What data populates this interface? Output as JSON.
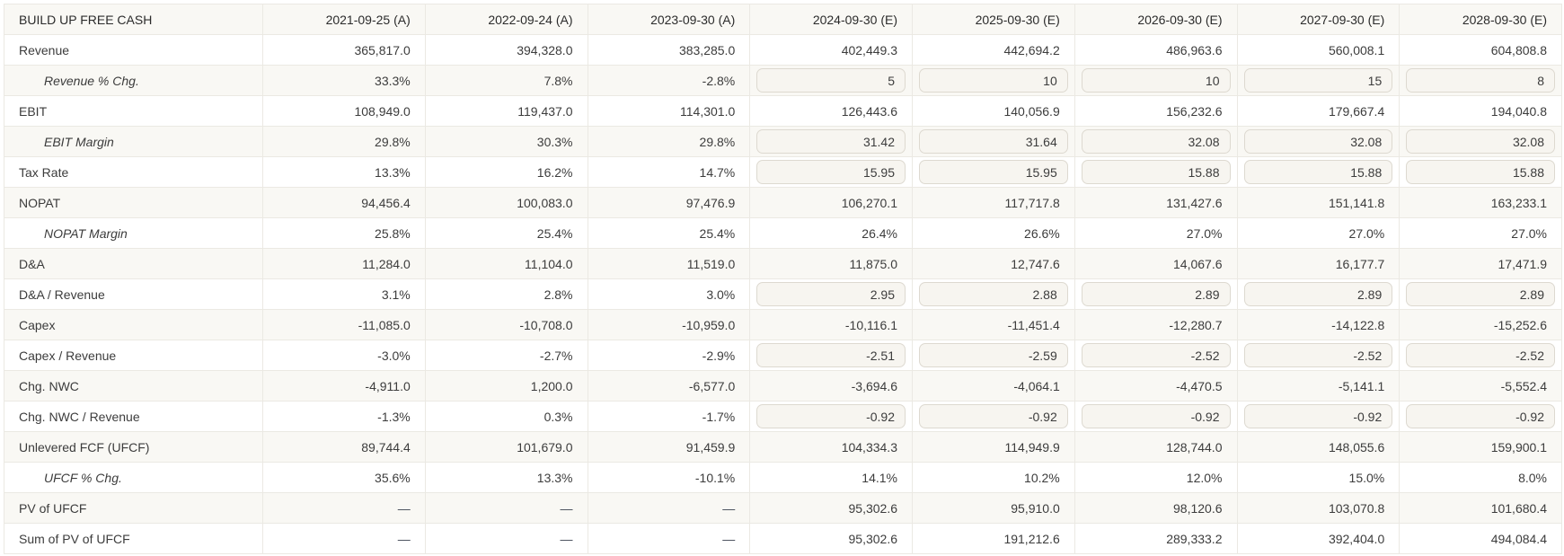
{
  "table": {
    "title": "BUILD UP FREE CASH",
    "columns": [
      "2021-09-25 (A)",
      "2022-09-24 (A)",
      "2023-09-30 (A)",
      "2024-09-30 (E)",
      "2025-09-30 (E)",
      "2026-09-30 (E)",
      "2027-09-30 (E)",
      "2028-09-30 (E)"
    ],
    "rows": [
      {
        "label": "Revenue",
        "style": "normal",
        "cells": [
          {
            "t": "text",
            "v": "365,817.0"
          },
          {
            "t": "text",
            "v": "394,328.0"
          },
          {
            "t": "text",
            "v": "383,285.0"
          },
          {
            "t": "text",
            "v": "402,449.3"
          },
          {
            "t": "text",
            "v": "442,694.2"
          },
          {
            "t": "text",
            "v": "486,963.6"
          },
          {
            "t": "text",
            "v": "560,008.1"
          },
          {
            "t": "text",
            "v": "604,808.8"
          }
        ]
      },
      {
        "label": "Revenue % Chg.",
        "style": "sub",
        "cells": [
          {
            "t": "text",
            "v": "33.3%"
          },
          {
            "t": "text",
            "v": "7.8%"
          },
          {
            "t": "text",
            "v": "-2.8%"
          },
          {
            "t": "input",
            "v": "5"
          },
          {
            "t": "input",
            "v": "10"
          },
          {
            "t": "input",
            "v": "10"
          },
          {
            "t": "input",
            "v": "15"
          },
          {
            "t": "input",
            "v": "8"
          }
        ]
      },
      {
        "label": "EBIT",
        "style": "normal",
        "cells": [
          {
            "t": "text",
            "v": "108,949.0"
          },
          {
            "t": "text",
            "v": "119,437.0"
          },
          {
            "t": "text",
            "v": "114,301.0"
          },
          {
            "t": "text",
            "v": "126,443.6"
          },
          {
            "t": "text",
            "v": "140,056.9"
          },
          {
            "t": "text",
            "v": "156,232.6"
          },
          {
            "t": "text",
            "v": "179,667.4"
          },
          {
            "t": "text",
            "v": "194,040.8"
          }
        ]
      },
      {
        "label": "EBIT Margin",
        "style": "sub",
        "cells": [
          {
            "t": "text",
            "v": "29.8%"
          },
          {
            "t": "text",
            "v": "30.3%"
          },
          {
            "t": "text",
            "v": "29.8%"
          },
          {
            "t": "input",
            "v": "31.42"
          },
          {
            "t": "input",
            "v": "31.64"
          },
          {
            "t": "input",
            "v": "32.08"
          },
          {
            "t": "input",
            "v": "32.08"
          },
          {
            "t": "input",
            "v": "32.08"
          }
        ]
      },
      {
        "label": "Tax Rate",
        "style": "normal",
        "cells": [
          {
            "t": "text",
            "v": "13.3%"
          },
          {
            "t": "text",
            "v": "16.2%"
          },
          {
            "t": "text",
            "v": "14.7%"
          },
          {
            "t": "input",
            "v": "15.95"
          },
          {
            "t": "input",
            "v": "15.95"
          },
          {
            "t": "input",
            "v": "15.88"
          },
          {
            "t": "input",
            "v": "15.88"
          },
          {
            "t": "input",
            "v": "15.88"
          }
        ]
      },
      {
        "label": "NOPAT",
        "style": "normal",
        "cells": [
          {
            "t": "text",
            "v": "94,456.4"
          },
          {
            "t": "text",
            "v": "100,083.0"
          },
          {
            "t": "text",
            "v": "97,476.9"
          },
          {
            "t": "text",
            "v": "106,270.1"
          },
          {
            "t": "text",
            "v": "117,717.8"
          },
          {
            "t": "text",
            "v": "131,427.6"
          },
          {
            "t": "text",
            "v": "151,141.8"
          },
          {
            "t": "text",
            "v": "163,233.1"
          }
        ]
      },
      {
        "label": "NOPAT Margin",
        "style": "sub",
        "cells": [
          {
            "t": "text",
            "v": "25.8%"
          },
          {
            "t": "text",
            "v": "25.4%"
          },
          {
            "t": "text",
            "v": "25.4%"
          },
          {
            "t": "text",
            "v": "26.4%"
          },
          {
            "t": "text",
            "v": "26.6%"
          },
          {
            "t": "text",
            "v": "27.0%"
          },
          {
            "t": "text",
            "v": "27.0%"
          },
          {
            "t": "text",
            "v": "27.0%"
          }
        ]
      },
      {
        "label": "D&A",
        "style": "normal",
        "cells": [
          {
            "t": "text",
            "v": "11,284.0"
          },
          {
            "t": "text",
            "v": "11,104.0"
          },
          {
            "t": "text",
            "v": "11,519.0"
          },
          {
            "t": "text",
            "v": "11,875.0"
          },
          {
            "t": "text",
            "v": "12,747.6"
          },
          {
            "t": "text",
            "v": "14,067.6"
          },
          {
            "t": "text",
            "v": "16,177.7"
          },
          {
            "t": "text",
            "v": "17,471.9"
          }
        ]
      },
      {
        "label": "D&A / Revenue",
        "style": "normal",
        "cells": [
          {
            "t": "text",
            "v": "3.1%"
          },
          {
            "t": "text",
            "v": "2.8%"
          },
          {
            "t": "text",
            "v": "3.0%"
          },
          {
            "t": "input",
            "v": "2.95"
          },
          {
            "t": "input",
            "v": "2.88"
          },
          {
            "t": "input",
            "v": "2.89"
          },
          {
            "t": "input",
            "v": "2.89"
          },
          {
            "t": "input",
            "v": "2.89"
          }
        ]
      },
      {
        "label": "Capex",
        "style": "normal",
        "cells": [
          {
            "t": "text",
            "v": "-11,085.0"
          },
          {
            "t": "text",
            "v": "-10,708.0"
          },
          {
            "t": "text",
            "v": "-10,959.0"
          },
          {
            "t": "text",
            "v": "-10,116.1"
          },
          {
            "t": "text",
            "v": "-11,451.4"
          },
          {
            "t": "text",
            "v": "-12,280.7"
          },
          {
            "t": "text",
            "v": "-14,122.8"
          },
          {
            "t": "text",
            "v": "-15,252.6"
          }
        ]
      },
      {
        "label": "Capex / Revenue",
        "style": "normal",
        "cells": [
          {
            "t": "text",
            "v": "-3.0%"
          },
          {
            "t": "text",
            "v": "-2.7%"
          },
          {
            "t": "text",
            "v": "-2.9%"
          },
          {
            "t": "input",
            "v": "-2.51"
          },
          {
            "t": "input",
            "v": "-2.59"
          },
          {
            "t": "input",
            "v": "-2.52"
          },
          {
            "t": "input",
            "v": "-2.52"
          },
          {
            "t": "input",
            "v": "-2.52"
          }
        ]
      },
      {
        "label": "Chg. NWC",
        "style": "normal",
        "cells": [
          {
            "t": "text",
            "v": "-4,911.0"
          },
          {
            "t": "text",
            "v": "1,200.0"
          },
          {
            "t": "text",
            "v": "-6,577.0"
          },
          {
            "t": "text",
            "v": "-3,694.6"
          },
          {
            "t": "text",
            "v": "-4,064.1"
          },
          {
            "t": "text",
            "v": "-4,470.5"
          },
          {
            "t": "text",
            "v": "-5,141.1"
          },
          {
            "t": "text",
            "v": "-5,552.4"
          }
        ]
      },
      {
        "label": "Chg. NWC / Revenue",
        "style": "normal",
        "cells": [
          {
            "t": "text",
            "v": "-1.3%"
          },
          {
            "t": "text",
            "v": "0.3%"
          },
          {
            "t": "text",
            "v": "-1.7%"
          },
          {
            "t": "input",
            "v": "-0.92"
          },
          {
            "t": "input",
            "v": "-0.92"
          },
          {
            "t": "input",
            "v": "-0.92"
          },
          {
            "t": "input",
            "v": "-0.92"
          },
          {
            "t": "input",
            "v": "-0.92"
          }
        ]
      },
      {
        "label": "Unlevered FCF (UFCF)",
        "style": "normal",
        "cells": [
          {
            "t": "text",
            "v": "89,744.4"
          },
          {
            "t": "text",
            "v": "101,679.0"
          },
          {
            "t": "text",
            "v": "91,459.9"
          },
          {
            "t": "text",
            "v": "104,334.3"
          },
          {
            "t": "text",
            "v": "114,949.9"
          },
          {
            "t": "text",
            "v": "128,744.0"
          },
          {
            "t": "text",
            "v": "148,055.6"
          },
          {
            "t": "text",
            "v": "159,900.1"
          }
        ]
      },
      {
        "label": "UFCF % Chg.",
        "style": "sub",
        "cells": [
          {
            "t": "text",
            "v": "35.6%"
          },
          {
            "t": "text",
            "v": "13.3%"
          },
          {
            "t": "text",
            "v": "-10.1%"
          },
          {
            "t": "text",
            "v": "14.1%"
          },
          {
            "t": "text",
            "v": "10.2%"
          },
          {
            "t": "text",
            "v": "12.0%"
          },
          {
            "t": "text",
            "v": "15.0%"
          },
          {
            "t": "text",
            "v": "8.0%"
          }
        ]
      },
      {
        "label": "PV of UFCF",
        "style": "normal",
        "cells": [
          {
            "t": "text",
            "v": "—"
          },
          {
            "t": "text",
            "v": "—"
          },
          {
            "t": "text",
            "v": "—"
          },
          {
            "t": "text",
            "v": "95,302.6"
          },
          {
            "t": "text",
            "v": "95,910.0"
          },
          {
            "t": "text",
            "v": "98,120.6"
          },
          {
            "t": "text",
            "v": "103,070.8"
          },
          {
            "t": "text",
            "v": "101,680.4"
          }
        ]
      },
      {
        "label": "Sum of PV of UFCF",
        "style": "normal",
        "cells": [
          {
            "t": "text",
            "v": "—"
          },
          {
            "t": "text",
            "v": "—"
          },
          {
            "t": "text",
            "v": "—"
          },
          {
            "t": "text",
            "v": "95,302.6"
          },
          {
            "t": "text",
            "v": "191,212.6"
          },
          {
            "t": "text",
            "v": "289,333.2"
          },
          {
            "t": "text",
            "v": "392,404.0"
          },
          {
            "t": "text",
            "v": "494,084.4"
          }
        ]
      }
    ]
  },
  "colors": {
    "stripe_bg": "#f9f8f4",
    "row_bg": "#ffffff",
    "border": "#ebe9e3",
    "input_bg": "#f7f5f0",
    "input_border": "#ddd9d0",
    "text": "#3c3c3c",
    "dash": "#434a56"
  }
}
